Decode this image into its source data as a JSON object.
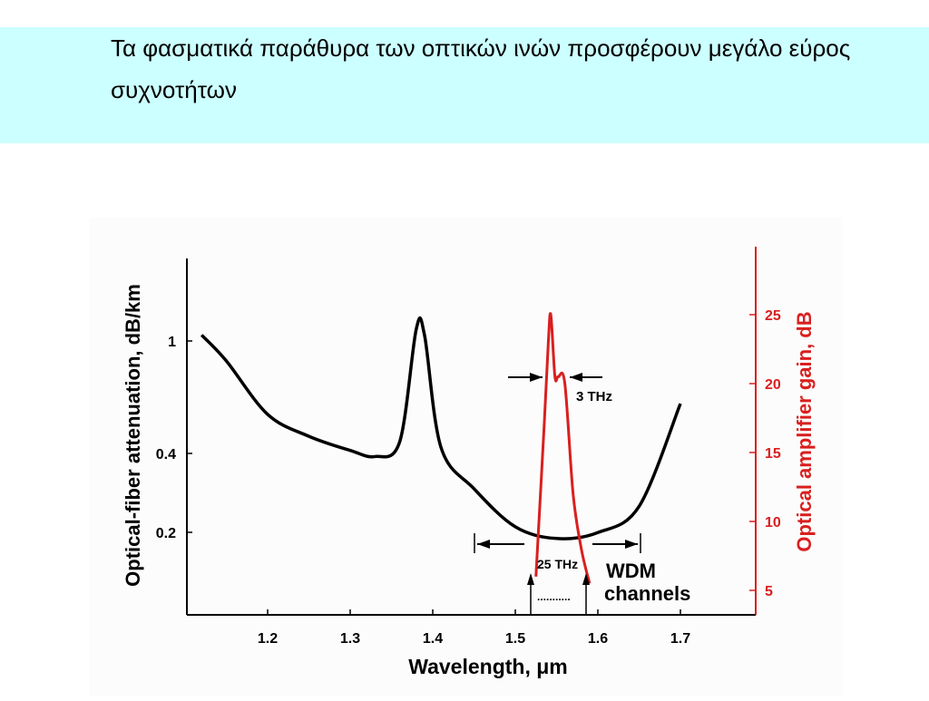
{
  "slide": {
    "title": "Τα φασματικά παράθυρα των οπτικών ινών προσφέρουν μεγάλο εύρος συχνοτήτων"
  },
  "chart_data": {
    "type": "line",
    "xlabel": "Wavelength, μm",
    "ylabel_left": "Optical-fiber attenuation, dB/km",
    "ylabel_right": "Optical amplifier gain, dB",
    "x_ticks": [
      "1.2",
      "1.3",
      "1.4",
      "1.5",
      "1.6",
      "1.7"
    ],
    "y_left_ticks": [
      "1",
      "0.4",
      "0.2"
    ],
    "y_right_ticks": [
      "25",
      "20",
      "15",
      "10",
      "5"
    ],
    "colors": {
      "attenuation": "#000000",
      "gain": "#d91f1f"
    },
    "attenuation": {
      "x": [
        1.12,
        1.15,
        1.2,
        1.25,
        1.3,
        1.33,
        1.36,
        1.38,
        1.39,
        1.41,
        1.45,
        1.5,
        1.55,
        1.6,
        1.65,
        1.7
      ],
      "y": [
        1.05,
        0.85,
        0.55,
        0.46,
        0.41,
        0.39,
        0.44,
        1.1,
        1.05,
        0.42,
        0.3,
        0.22,
        0.2,
        0.21,
        0.26,
        0.6
      ]
    },
    "amplifier_gain": {
      "x": [
        1.525,
        1.535,
        1.54,
        1.543,
        1.548,
        1.552,
        1.56,
        1.57,
        1.58,
        1.59
      ],
      "y": [
        6,
        17,
        23,
        25,
        20.5,
        20.5,
        20,
        12,
        8,
        5.5
      ]
    },
    "annotations": {
      "bandwidth_3": "3 THz",
      "bandwidth_25": "25 THz",
      "wdm_line1": "WDM",
      "wdm_line2": "channels",
      "dots": "..........."
    }
  }
}
